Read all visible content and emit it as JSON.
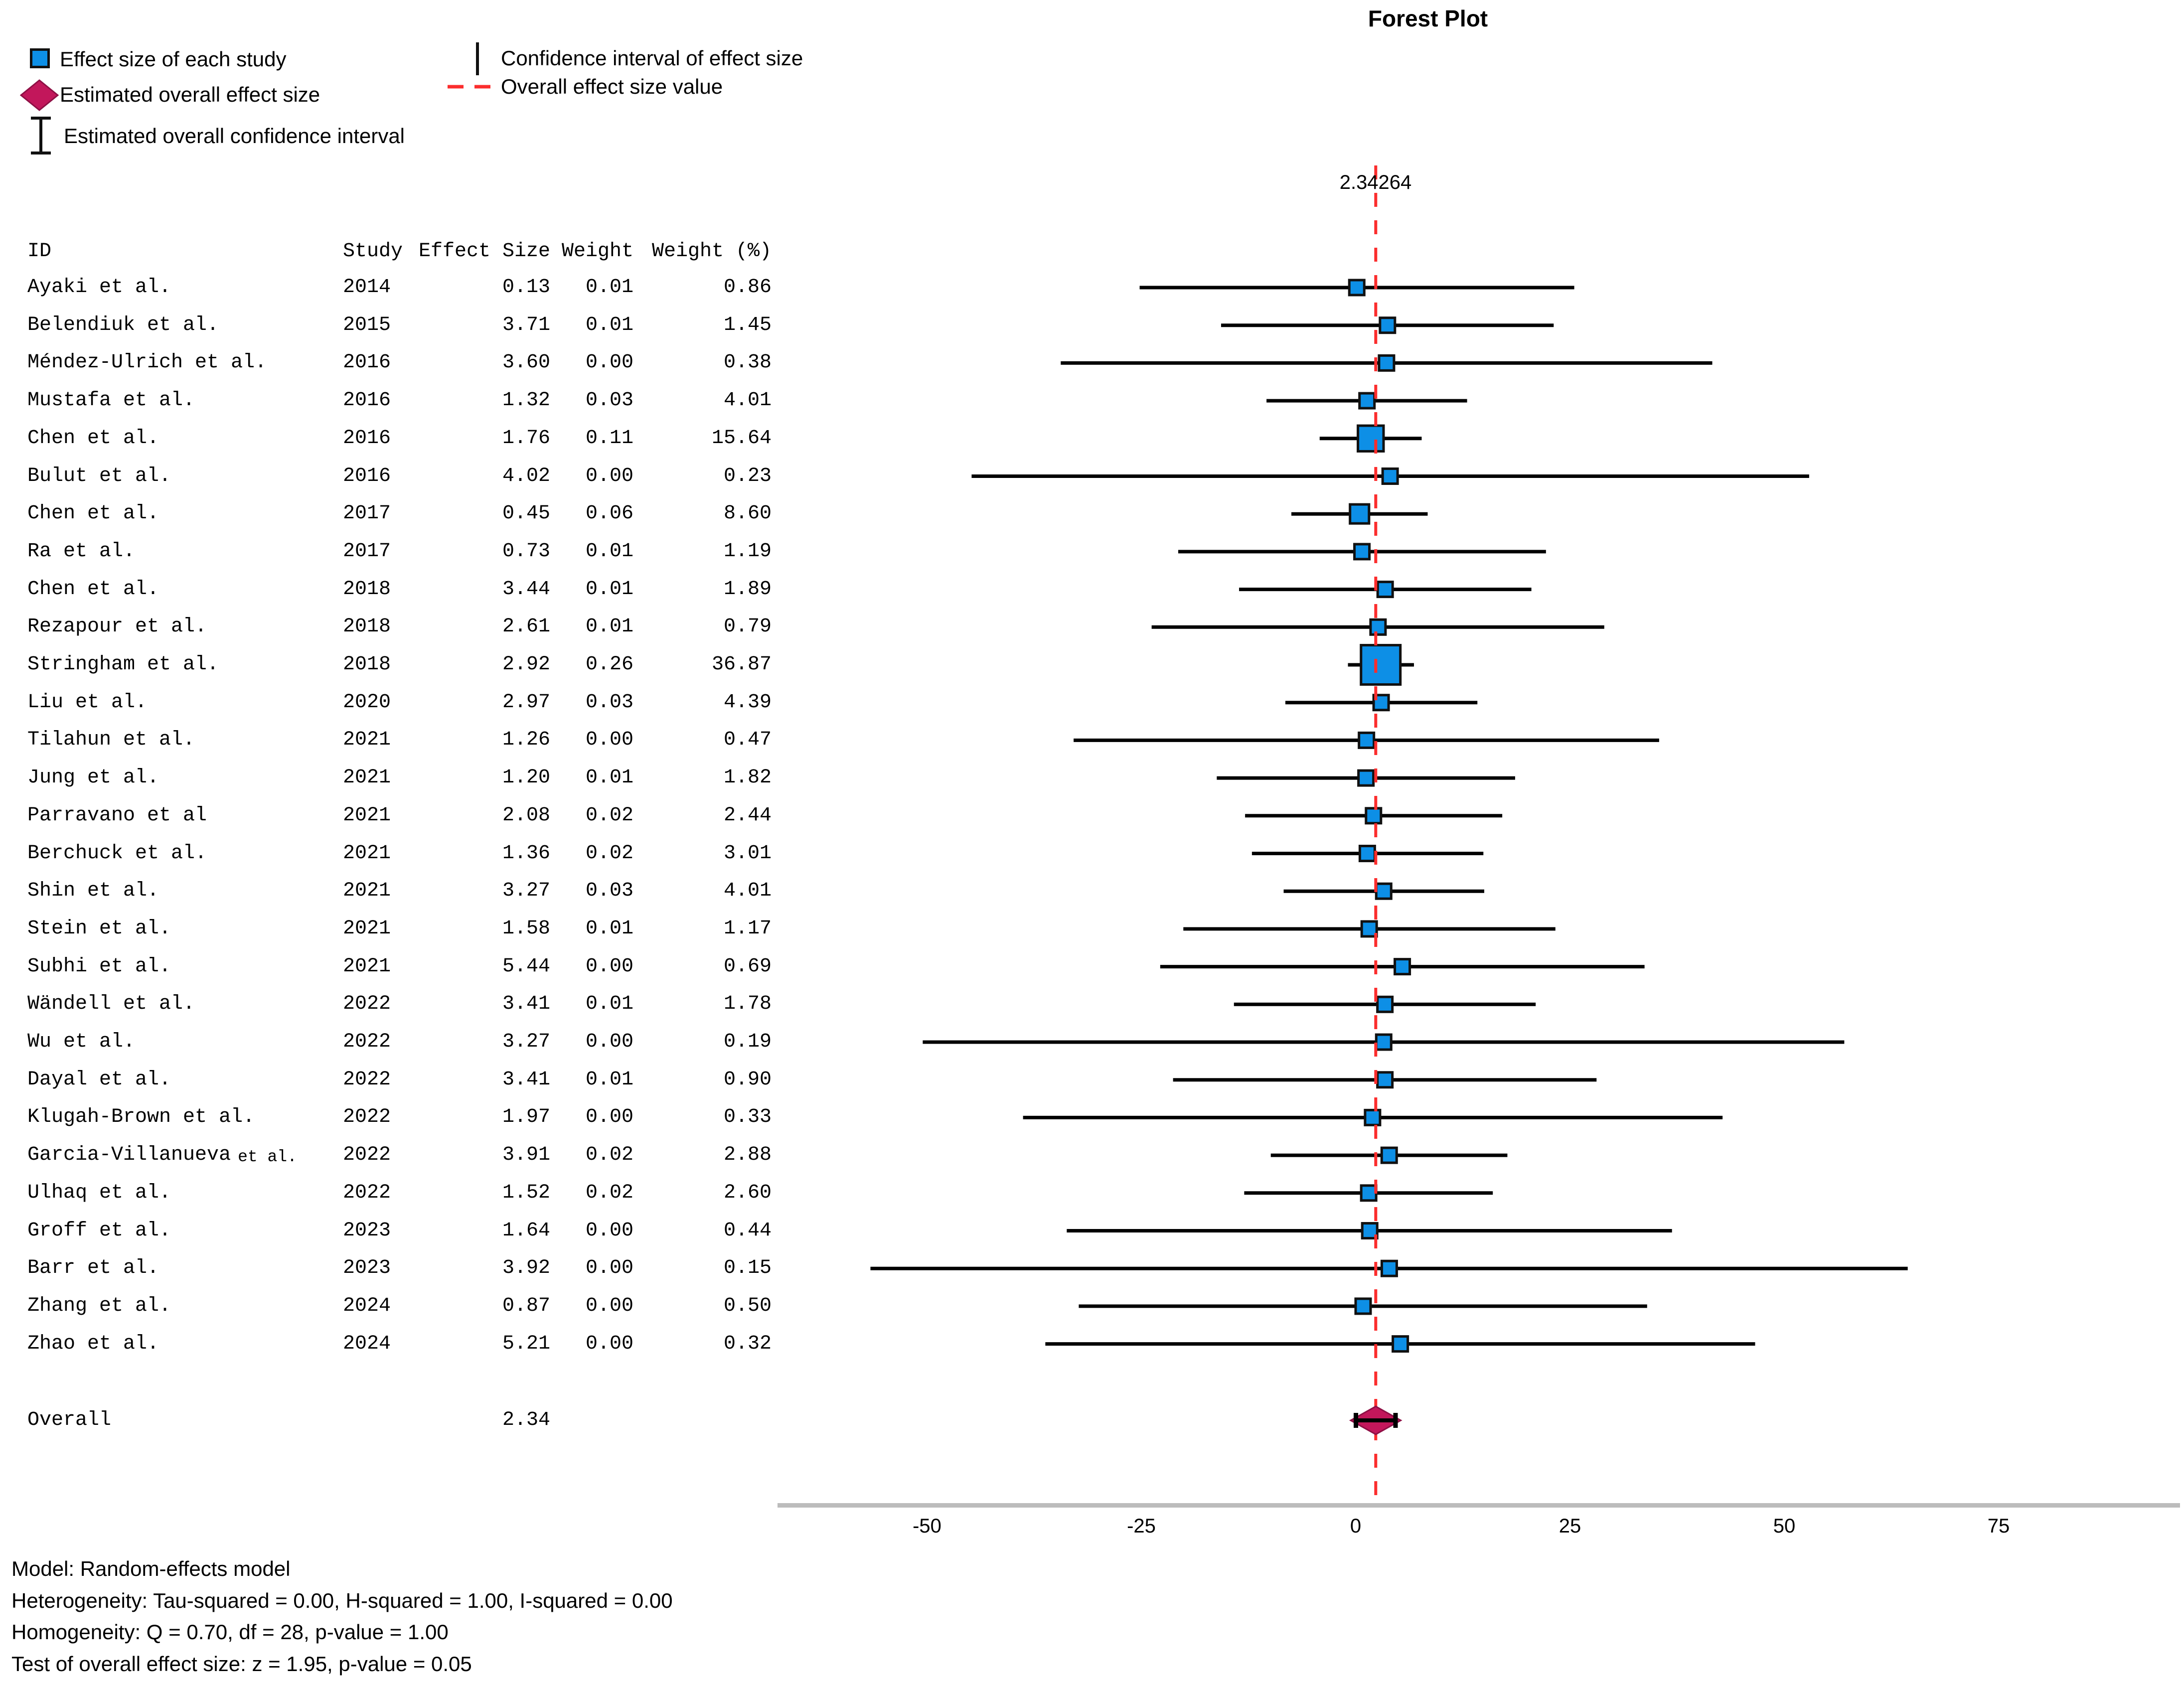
{
  "title": "Forest Plot",
  "legend": {
    "study_marker_label": "Effect size of each study",
    "overall_marker_label": "Estimated overall effect size",
    "overall_ci_label": "Estimated overall confidence interval",
    "study_ci_label": "Confidence interval of effect size",
    "overall_value_label": "Overall effect size value"
  },
  "effect_line_label": "2.34264",
  "table": {
    "header_id": "ID",
    "header_study": "Study",
    "header_effect": "Effect Size",
    "header_weight": "Weight",
    "header_weight_pct": "Weight (%)"
  },
  "overall_row": {
    "label": "Overall",
    "effect": "2.34"
  },
  "axis": {
    "tick_labels": [
      "-50",
      "-25",
      "0",
      "25",
      "50",
      "75"
    ]
  },
  "footer": {
    "lines": [
      "Model: Random-effects model",
      "Heterogeneity: Tau-squared = 0.00, H-squared = 1.00, I-squared = 0.00",
      "Homogeneity: Q = 0.70, df = 28, p-value = 1.00",
      "Test of overall effect size: z = 1.95, p-value = 0.05"
    ]
  },
  "colors": {
    "study_square_fill": "#0d8fe6",
    "marker_border": "#111111",
    "overall_diamond_fill": "#c2175b",
    "overall_diamond_border": "#8e1045",
    "ci_line": "#000000",
    "overall_value_line": "#fb2d2d",
    "axis_line": "#bcbcbc"
  },
  "chart_data": {
    "type": "forest",
    "title": "Forest Plot",
    "x_axis": {
      "tick_values": [
        -50,
        -25,
        0,
        25,
        50,
        75
      ],
      "tick_labels": [
        "-50",
        "-25",
        "0",
        "25",
        "50",
        "75"
      ]
    },
    "overall": {
      "label": "Overall",
      "effect": 2.34,
      "effect_precise": 2.34264,
      "ci_lower": 0.0,
      "ci_upper": 4.68
    },
    "stats": {
      "model": "Random-effects model",
      "tau_squared": 0.0,
      "h_squared": 1.0,
      "i_squared": 0.0,
      "q": 0.7,
      "df": 28,
      "p_homogeneity": 1.0,
      "z": 1.95,
      "p_overall": 0.05
    },
    "studies": [
      {
        "id": "Ayaki et al.",
        "id_suffix": "",
        "year": "2014",
        "effect": "0.13",
        "weight": "0.01",
        "weight_pct": "0.86",
        "ci_lower": -25.2,
        "ci_upper": 25.5
      },
      {
        "id": "Belendiuk et al.",
        "id_suffix": "",
        "year": "2015",
        "effect": "3.71",
        "weight": "0.01",
        "weight_pct": "1.45",
        "ci_lower": -15.7,
        "ci_upper": 23.1
      },
      {
        "id": "Méndez-Ulrich et al.",
        "id_suffix": "",
        "year": "2016",
        "effect": "3.60",
        "weight": "0.00",
        "weight_pct": "0.38",
        "ci_lower": -34.4,
        "ci_upper": 41.6
      },
      {
        "id": "Mustafa et al.",
        "id_suffix": "",
        "year": "2016",
        "effect": "1.32",
        "weight": "0.03",
        "weight_pct": "4.01",
        "ci_lower": -10.4,
        "ci_upper": 13.0
      },
      {
        "id": "Chen et al.",
        "id_suffix": "",
        "year": "2016",
        "effect": "1.76",
        "weight": "0.11",
        "weight_pct": "15.64",
        "ci_lower": -4.2,
        "ci_upper": 7.7
      },
      {
        "id": "Bulut et al.",
        "id_suffix": "",
        "year": "2016",
        "effect": "4.02",
        "weight": "0.00",
        "weight_pct": "0.23",
        "ci_lower": -44.8,
        "ci_upper": 52.9
      },
      {
        "id": "Chen et al.",
        "id_suffix": "",
        "year": "2017",
        "effect": "0.45",
        "weight": "0.06",
        "weight_pct": "8.60",
        "ci_lower": -7.5,
        "ci_upper": 8.4
      },
      {
        "id": "Ra et al.",
        "id_suffix": "",
        "year": "2017",
        "effect": "0.73",
        "weight": "0.01",
        "weight_pct": "1.19",
        "ci_lower": -20.7,
        "ci_upper": 22.2
      },
      {
        "id": "Chen et al.",
        "id_suffix": "",
        "year": "2018",
        "effect": "3.44",
        "weight": "0.01",
        "weight_pct": "1.89",
        "ci_lower": -13.6,
        "ci_upper": 20.5
      },
      {
        "id": "Rezapour et al.",
        "id_suffix": "",
        "year": "2018",
        "effect": "2.61",
        "weight": "0.01",
        "weight_pct": "0.79",
        "ci_lower": -23.8,
        "ci_upper": 29.0
      },
      {
        "id": "Stringham et al.",
        "id_suffix": "",
        "year": "2018",
        "effect": "2.92",
        "weight": "0.26",
        "weight_pct": "36.87",
        "ci_lower": -0.9,
        "ci_upper": 6.8
      },
      {
        "id": "Liu et al.",
        "id_suffix": "",
        "year": "2020",
        "effect": "2.97",
        "weight": "0.03",
        "weight_pct": "4.39",
        "ci_lower": -8.2,
        "ci_upper": 14.2
      },
      {
        "id": "Tilahun et al.",
        "id_suffix": "",
        "year": "2021",
        "effect": "1.26",
        "weight": "0.00",
        "weight_pct": "0.47",
        "ci_lower": -32.9,
        "ci_upper": 35.4
      },
      {
        "id": "Jung et al.",
        "id_suffix": "",
        "year": "2021",
        "effect": "1.20",
        "weight": "0.01",
        "weight_pct": "1.82",
        "ci_lower": -16.2,
        "ci_upper": 18.6
      },
      {
        "id": "Parravano et al",
        "id_suffix": "",
        "year": "2021",
        "effect": "2.08",
        "weight": "0.02",
        "weight_pct": "2.44",
        "ci_lower": -12.9,
        "ci_upper": 17.1
      },
      {
        "id": "Berchuck et al.",
        "id_suffix": "",
        "year": "2021",
        "effect": "1.36",
        "weight": "0.02",
        "weight_pct": "3.01",
        "ci_lower": -12.1,
        "ci_upper": 14.9
      },
      {
        "id": "Shin et al.",
        "id_suffix": "",
        "year": "2021",
        "effect": "3.27",
        "weight": "0.03",
        "weight_pct": "4.01",
        "ci_lower": -8.4,
        "ci_upper": 15.0
      },
      {
        "id": "Stein et al.",
        "id_suffix": "",
        "year": "2021",
        "effect": "1.58",
        "weight": "0.01",
        "weight_pct": "1.17",
        "ci_lower": -20.1,
        "ci_upper": 23.3
      },
      {
        "id": "Subhi et al.",
        "id_suffix": "",
        "year": "2021",
        "effect": "5.44",
        "weight": "0.00",
        "weight_pct": "0.69",
        "ci_lower": -22.8,
        "ci_upper": 33.7
      },
      {
        "id": "Wändell et al.",
        "id_suffix": "",
        "year": "2022",
        "effect": "3.41",
        "weight": "0.01",
        "weight_pct": "1.78",
        "ci_lower": -14.2,
        "ci_upper": 21.0
      },
      {
        "id": "Wu et al.",
        "id_suffix": "",
        "year": "2022",
        "effect": "3.27",
        "weight": "0.00",
        "weight_pct": "0.19",
        "ci_lower": -50.5,
        "ci_upper": 57.0
      },
      {
        "id": "Dayal et al.",
        "id_suffix": "",
        "year": "2022",
        "effect": "3.41",
        "weight": "0.01",
        "weight_pct": "0.90",
        "ci_lower": -21.3,
        "ci_upper": 28.1
      },
      {
        "id": "Klugah-Brown et al.",
        "id_suffix": "",
        "year": "2022",
        "effect": "1.97",
        "weight": "0.00",
        "weight_pct": "0.33",
        "ci_lower": -38.8,
        "ci_upper": 42.8
      },
      {
        "id": "Garcia-Villanueva",
        "id_suffix": "et al.",
        "year": "2022",
        "effect": "3.91",
        "weight": "0.02",
        "weight_pct": "2.88",
        "ci_lower": -9.9,
        "ci_upper": 17.7
      },
      {
        "id": "Ulhaq et al.",
        "id_suffix": "",
        "year": "2022",
        "effect": "1.52",
        "weight": "0.02",
        "weight_pct": "2.60",
        "ci_lower": -13.0,
        "ci_upper": 16.0
      },
      {
        "id": "Groff et al.",
        "id_suffix": "",
        "year": "2023",
        "effect": "1.64",
        "weight": "0.00",
        "weight_pct": "0.44",
        "ci_lower": -33.7,
        "ci_upper": 36.9
      },
      {
        "id": "Barr et al.",
        "id_suffix": "",
        "year": "2023",
        "effect": "3.92",
        "weight": "0.00",
        "weight_pct": "0.15",
        "ci_lower": -56.6,
        "ci_upper": 64.4
      },
      {
        "id": "Zhang et al.",
        "id_suffix": "",
        "year": "2024",
        "effect": "0.87",
        "weight": "0.00",
        "weight_pct": "0.50",
        "ci_lower": -32.3,
        "ci_upper": 34.0
      },
      {
        "id": "Zhao et al.",
        "id_suffix": "",
        "year": "2024",
        "effect": "5.21",
        "weight": "0.00",
        "weight_pct": "0.32",
        "ci_lower": -36.2,
        "ci_upper": 46.6
      }
    ]
  }
}
